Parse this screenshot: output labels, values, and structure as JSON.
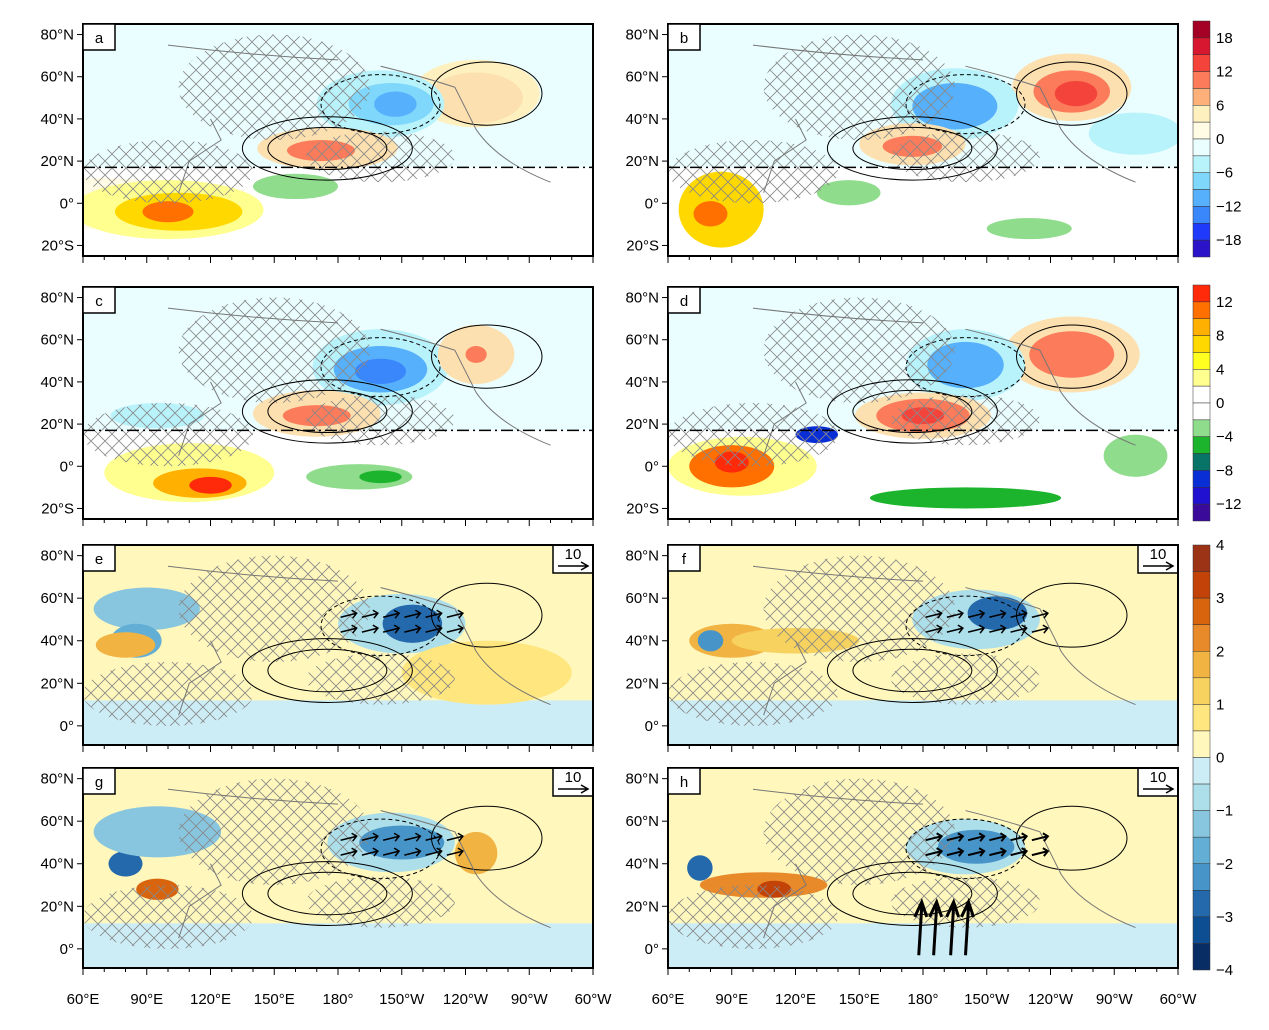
{
  "panels": [
    {
      "id": "a",
      "label": "a",
      "row": 0,
      "col": 0,
      "type": "upper"
    },
    {
      "id": "b",
      "label": "b",
      "row": 0,
      "col": 1,
      "type": "upper"
    },
    {
      "id": "c",
      "label": "c",
      "row": 1,
      "col": 0,
      "type": "upper"
    },
    {
      "id": "d",
      "label": "d",
      "row": 1,
      "col": 1,
      "type": "upper"
    },
    {
      "id": "e",
      "label": "e",
      "row": 2,
      "col": 0,
      "type": "lower",
      "ref_vector": "10"
    },
    {
      "id": "f",
      "label": "f",
      "row": 2,
      "col": 1,
      "type": "lower",
      "ref_vector": "10"
    },
    {
      "id": "g",
      "label": "g",
      "row": 3,
      "col": 0,
      "type": "lower",
      "ref_vector": "10"
    },
    {
      "id": "h",
      "label": "h",
      "row": 3,
      "col": 1,
      "type": "lower",
      "ref_vector": "10"
    }
  ],
  "lat_ticks_upper": [
    "80°N",
    "60°N",
    "40°N",
    "20°N",
    "0°",
    "20°S"
  ],
  "lat_ticks_lower": [
    "80°N",
    "60°N",
    "40°N",
    "20°N",
    "0°"
  ],
  "lon_ticks": [
    "60°E",
    "90°E",
    "120°E",
    "150°E",
    "180°",
    "150°W",
    "120°W",
    "90°W",
    "60°W"
  ],
  "colorbars": [
    {
      "name": "colorbar-1",
      "labels": [
        "18",
        "12",
        "6",
        "0",
        "−6",
        "−12",
        "−18"
      ],
      "colors": [
        "#a50026",
        "#d7172f",
        "#f4433b",
        "#fc7b5a",
        "#fdb07a",
        "#fff0c0",
        "#fffbe4",
        "#eafeff",
        "#b8f2fb",
        "#7fd7fb",
        "#56b0fb",
        "#3a86fb",
        "#1f3afb",
        "#2a13c8"
      ]
    },
    {
      "name": "colorbar-2",
      "labels": [
        "12",
        "8",
        "4",
        "0",
        "−4",
        "−8",
        "−12"
      ],
      "colors": [
        "#ff2a0a",
        "#ff7000",
        "#ffb000",
        "#ffd800",
        "#ffff20",
        "#ffff90",
        "#ffffff",
        "#ffffff",
        "#8fdc8c",
        "#1cb42c",
        "#087468",
        "#0a2ed6",
        "#2010d0",
        "#3a0a9a"
      ]
    },
    {
      "name": "colorbar-3",
      "labels": [
        "4",
        "3",
        "2",
        "1",
        "0",
        "−1",
        "−2",
        "−3",
        "−4"
      ],
      "colors": [
        "#9c3317",
        "#c24208",
        "#d8640e",
        "#e8892a",
        "#f1b443",
        "#f7d25e",
        "#ffe67e",
        "#fff7bc",
        "#cdedf6",
        "#addfea",
        "#88c6df",
        "#62aed4",
        "#4795c8",
        "#2469ab",
        "#0d4d92",
        "#082d64"
      ]
    }
  ]
}
